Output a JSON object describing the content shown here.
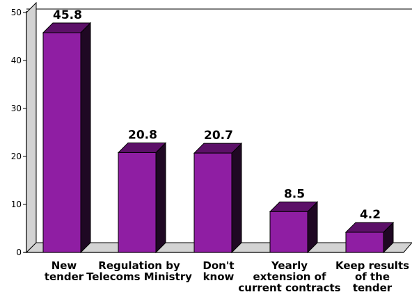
{
  "chart_data": {
    "type": "bar",
    "categories": [
      [
        "New",
        "tender"
      ],
      [
        "Regulation by",
        "Telecoms Ministry"
      ],
      [
        "Don't",
        "know"
      ],
      [
        "Yearly",
        "extension of",
        "current contracts"
      ],
      [
        "Keep results",
        "of the",
        "tender"
      ]
    ],
    "values": [
      45.8,
      20.8,
      20.7,
      8.5,
      4.2
    ],
    "value_labels": [
      "45.8",
      "20.8",
      "20.7",
      "8.5",
      "4.2"
    ],
    "yticks": [
      "0",
      "10",
      "20",
      "30",
      "40",
      "50"
    ],
    "ylim": [
      0,
      50
    ],
    "grid": false,
    "legend": "none",
    "colors": {
      "bar_front": "#8f1ea3",
      "bar_side": "#1f0823",
      "bar_top": "#5c1068",
      "wall": "#d3d3d3",
      "floor": "#d3d3d3",
      "axis": "#000000",
      "frame": "#555555"
    }
  }
}
